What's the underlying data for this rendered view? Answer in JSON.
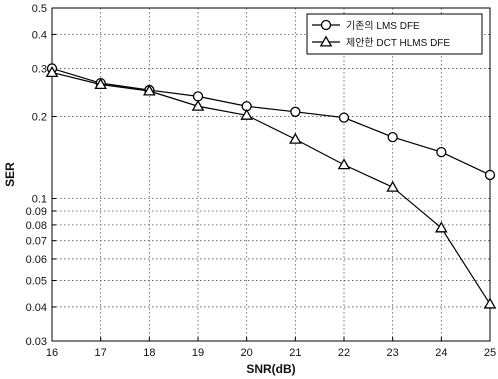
{
  "chart_data": {
    "type": "line",
    "xlabel": "SNR(dB)",
    "ylabel": "SER",
    "x": [
      16,
      17,
      18,
      19,
      20,
      21,
      22,
      23,
      24,
      25
    ],
    "xlim": [
      16,
      25
    ],
    "ylim": [
      0.03,
      0.5
    ],
    "yscale": "log",
    "grid": true,
    "legend_position": "top-right",
    "xticks": [
      16,
      17,
      18,
      19,
      20,
      21,
      22,
      23,
      24,
      25
    ],
    "yticks": [
      {
        "value": 0.03,
        "label": "0.03"
      },
      {
        "value": 0.04,
        "label": "0.04"
      },
      {
        "value": 0.05,
        "label": "0.05"
      },
      {
        "value": 0.06,
        "label": "0.06"
      },
      {
        "value": 0.07,
        "label": "0.07"
      },
      {
        "value": 0.08,
        "label": "0.08"
      },
      {
        "value": 0.09,
        "label": "0.09"
      },
      {
        "value": 0.1,
        "label": "0.1"
      },
      {
        "value": 0.2,
        "label": "0.2"
      },
      {
        "value": 0.3,
        "label": "0.3"
      },
      {
        "value": 0.4,
        "label": "0.4"
      },
      {
        "value": 0.5,
        "label": "0.5"
      }
    ],
    "series": [
      {
        "name": "기존의 LMS DFE",
        "marker": "circle",
        "values": [
          0.3,
          0.265,
          0.25,
          0.237,
          0.218,
          0.208,
          0.198,
          0.168,
          0.148,
          0.122
        ]
      },
      {
        "name": "제안한 DCT HLMS DFE",
        "marker": "triangle",
        "values": [
          0.29,
          0.262,
          0.248,
          0.218,
          0.202,
          0.165,
          0.133,
          0.11,
          0.078,
          0.041
        ]
      }
    ]
  }
}
